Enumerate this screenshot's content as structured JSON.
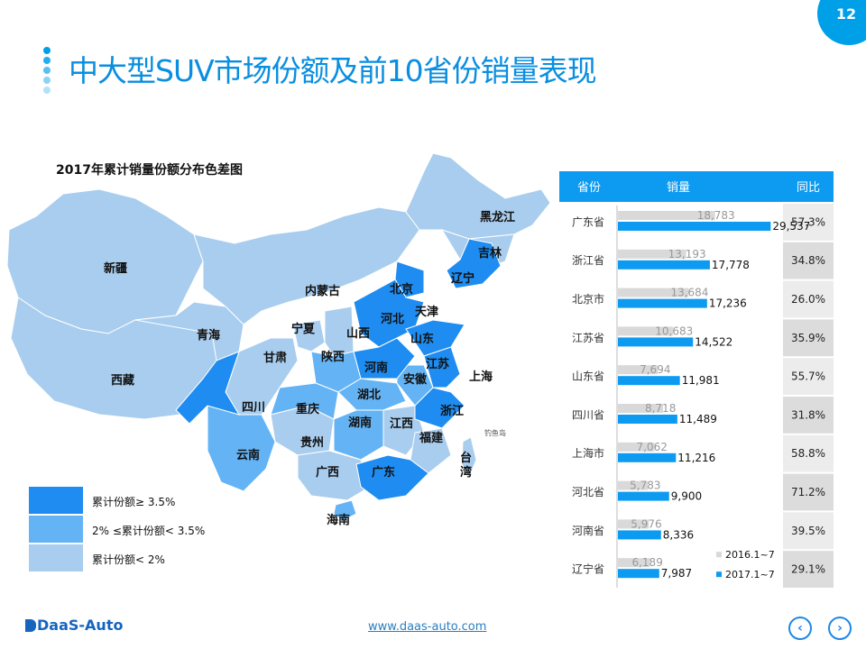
{
  "page_number": "12",
  "title": "中大型SUV市场份额及前10省份销量表现",
  "map": {
    "title": "2017年累计销量份额分布色差图",
    "colors": {
      "high": "#1e8cf0",
      "mid": "#64b4f5",
      "low": "#a9cdee"
    },
    "legend": [
      {
        "label": "累计份额≥ 3.5%",
        "color": "#1e8cf0"
      },
      {
        "label": "2% ≤累计份额< 3.5%",
        "color": "#64b4f5"
      },
      {
        "label": "累计份额< 2%",
        "color": "#a9cdee"
      }
    ],
    "provinces": [
      "黑龙江",
      "吉林",
      "辽宁",
      "新疆",
      "内蒙古",
      "北京",
      "天津",
      "河北",
      "宁夏",
      "山西",
      "山东",
      "青海",
      "甘肃",
      "陕西",
      "河南",
      "江苏",
      "安徽",
      "上海",
      "西藏",
      "四川",
      "重庆",
      "湖北",
      "浙江",
      "湖南",
      "江西",
      "贵州",
      "福建",
      "云南",
      "广西",
      "广东",
      "台湾",
      "海南"
    ],
    "island_label": "钓鱼岛"
  },
  "chart_data": {
    "type": "bar",
    "orientation": "horizontal",
    "columns": [
      "省份",
      "销量",
      "同比"
    ],
    "categories": [
      "广东省",
      "浙江省",
      "北京市",
      "江苏省",
      "山东省",
      "四川省",
      "上海市",
      "河北省",
      "河南省",
      "辽宁省"
    ],
    "series": [
      {
        "name": "2016.1~7",
        "color": "#d9d9d9",
        "values": [
          18783,
          13193,
          13684,
          10683,
          7694,
          8718,
          7062,
          5783,
          5976,
          6189
        ],
        "labels": [
          "18,783",
          "13,193",
          "13,684",
          "10,683",
          "7,694",
          "8,718",
          "7,062",
          "5,783",
          "5,976",
          "6,189"
        ]
      },
      {
        "name": "2017.1~7",
        "color": "#0d9bf2",
        "values": [
          29537,
          17778,
          17236,
          14522,
          11981,
          11489,
          11216,
          9900,
          8336,
          7987
        ],
        "labels": [
          "29,537",
          "17,778",
          "17,236",
          "14,522",
          "11,981",
          "11,489",
          "11,216",
          "9,900",
          "8,336",
          "7,987"
        ]
      }
    ],
    "yoy": [
      "57.3%",
      "34.8%",
      "26.0%",
      "35.9%",
      "55.7%",
      "31.8%",
      "58.8%",
      "71.2%",
      "39.5%",
      "29.1%"
    ],
    "header_color": "#0d9bf2",
    "legend_position": "bottom-right"
  },
  "footer": {
    "logo": "DaaS-Auto",
    "url": "www.daas-auto.com"
  }
}
